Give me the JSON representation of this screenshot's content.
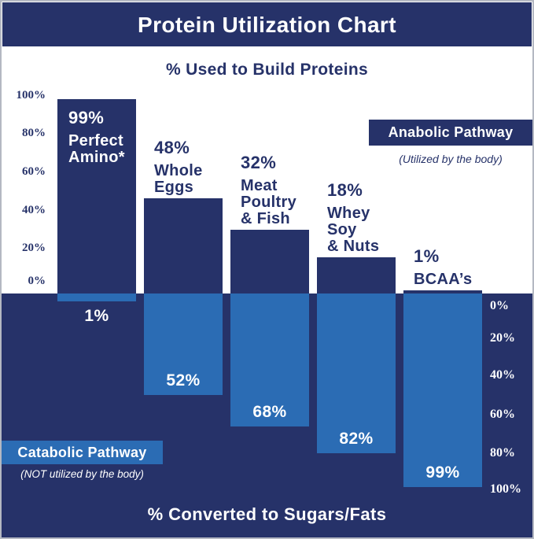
{
  "title": "Protein Utilization Chart",
  "top_section": {
    "heading": "% Used to Build Proteins",
    "axis_ticks": [
      "100%",
      "80%",
      "60%",
      "40%",
      "20%",
      "0%"
    ]
  },
  "bottom_section": {
    "heading": "% Converted to Sugars/Fats",
    "axis_ticks": [
      "0%",
      "20%",
      "40%",
      "60%",
      "80%",
      "100%"
    ]
  },
  "anabolic_legend": {
    "label": "Anabolic Pathway",
    "note": "(Utilized by the body)"
  },
  "catabolic_legend": {
    "label": "Catabolic Pathway",
    "note": "(NOT utilized by the body)"
  },
  "colors": {
    "navy": "#263269",
    "blue": "#2b6cb4",
    "white": "#ffffff"
  },
  "chart_data": {
    "type": "bar",
    "title": "Protein Utilization Chart",
    "orientation": "diverging-vertical",
    "top_axis_label": "% Used to Build Proteins",
    "bottom_axis_label": "% Converted to Sugars/Fats",
    "categories": [
      "Perfect Amino*",
      "Whole Eggs",
      "Meat Poultry & Fish",
      "Whey Soy & Nuts",
      "BCAA’s"
    ],
    "series": [
      {
        "name": "Anabolic Pathway (Utilized by the body)",
        "values": [
          99,
          48,
          32,
          18,
          1
        ]
      },
      {
        "name": "Catabolic Pathway (NOT utilized by the body)",
        "values": [
          1,
          52,
          68,
          82,
          99
        ]
      }
    ],
    "top_axis_ticks": [
      "100%",
      "80%",
      "60%",
      "40%",
      "20%",
      "0%"
    ],
    "bottom_axis_ticks": [
      "0%",
      "20%",
      "40%",
      "60%",
      "80%",
      "100%"
    ],
    "ylim": [
      0,
      100
    ],
    "grid": false,
    "legend_position": {
      "anabolic": "top-right",
      "catabolic": "bottom-left"
    },
    "items": [
      {
        "lines": [
          "Perfect",
          "Amino*"
        ],
        "up": 99,
        "up_label": "99%",
        "down": 1,
        "down_label": "1%",
        "up_label_inside": true
      },
      {
        "lines": [
          "Whole",
          "Eggs"
        ],
        "up": 48,
        "up_label": "48%",
        "down": 52,
        "down_label": "52%",
        "up_label_inside": false
      },
      {
        "lines": [
          "Meat",
          "Poultry",
          "& Fish"
        ],
        "up": 32,
        "up_label": "32%",
        "down": 68,
        "down_label": "68%",
        "up_label_inside": false
      },
      {
        "lines": [
          "Whey",
          "Soy",
          "& Nuts"
        ],
        "up": 18,
        "up_label": "18%",
        "down": 82,
        "down_label": "82%",
        "up_label_inside": false
      },
      {
        "lines": [
          "BCAA’s"
        ],
        "up": 1,
        "up_label": "1%",
        "down": 99,
        "down_label": "99%",
        "up_label_inside": false
      }
    ]
  }
}
